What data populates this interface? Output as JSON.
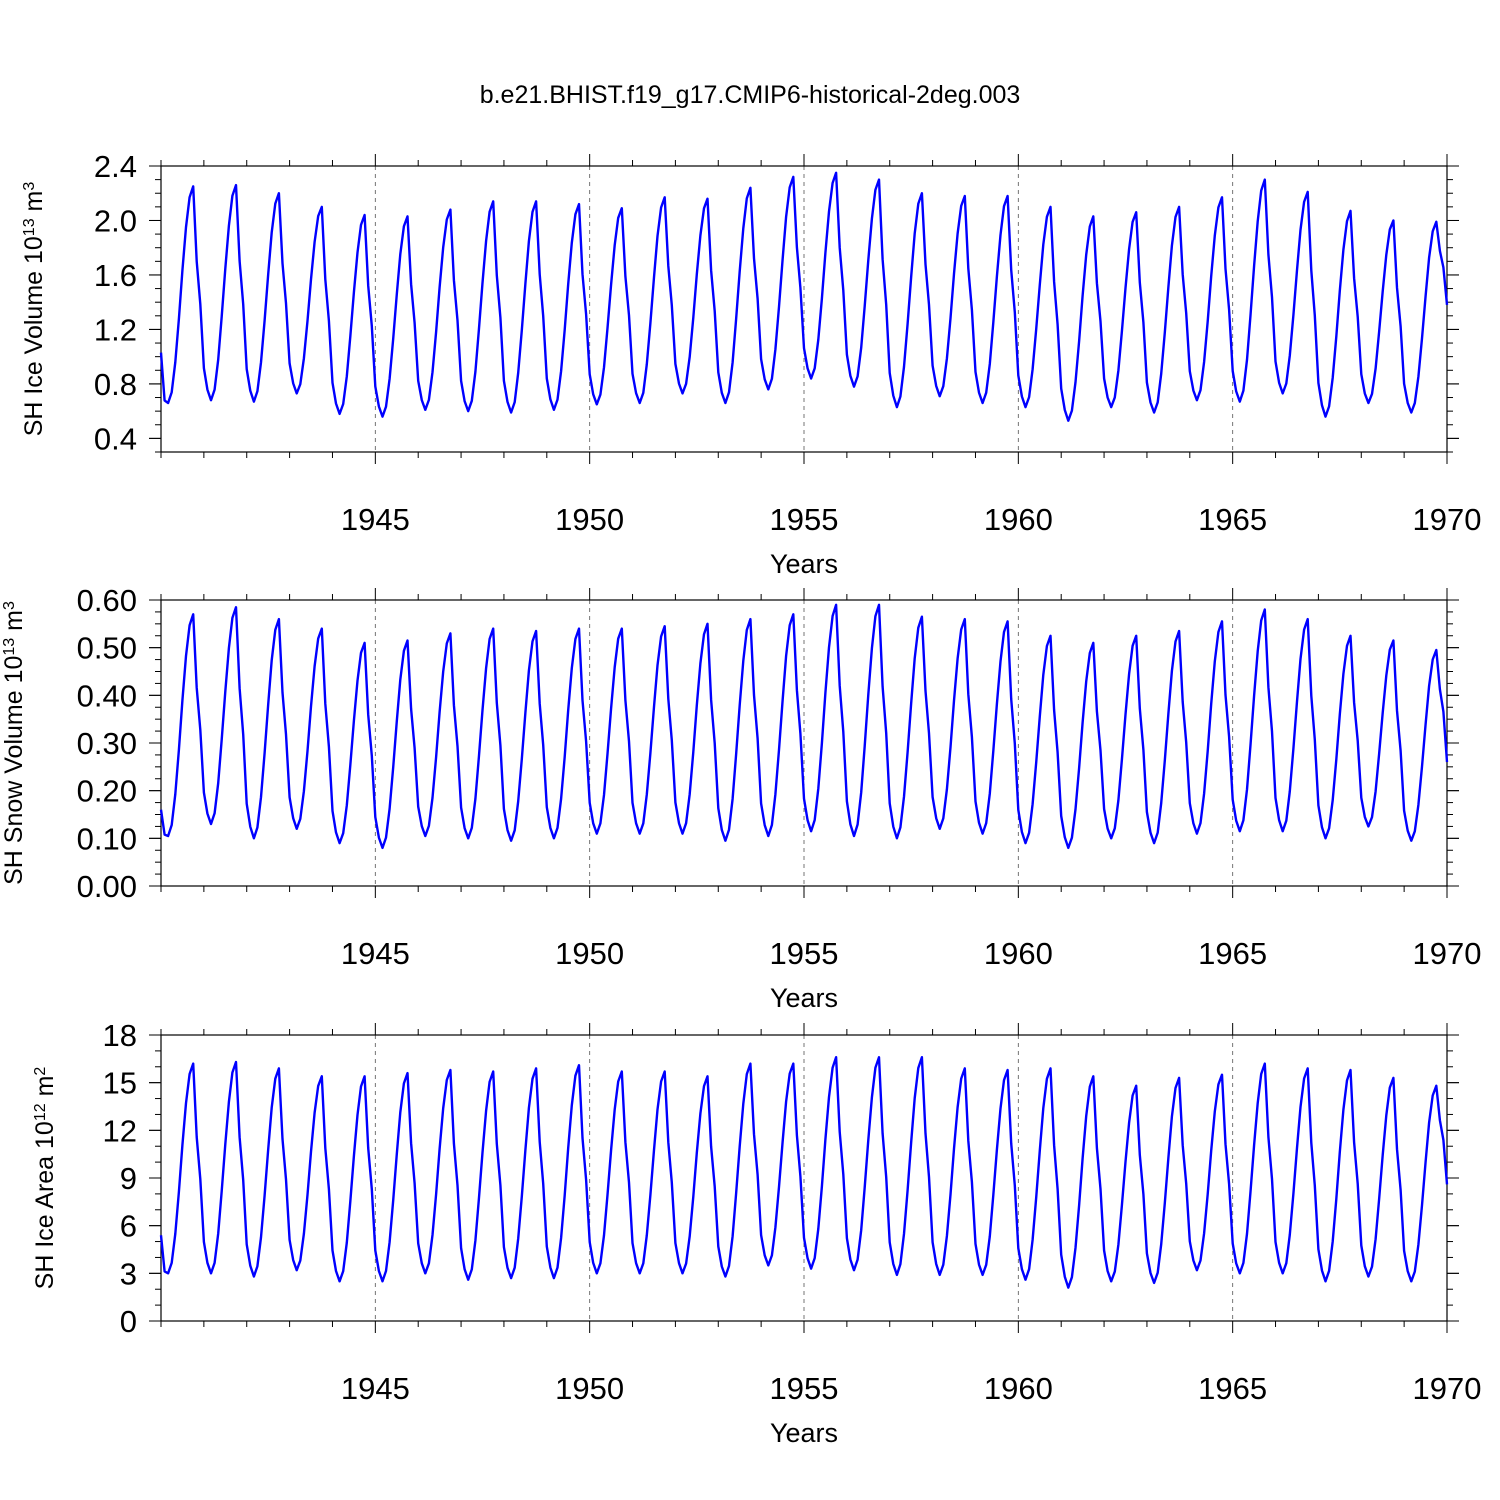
{
  "title": "b.e21.BHIST.f19_g17.CMIP6-historical-2deg.003",
  "colors": {
    "series": "#0000ff",
    "axis": "#000000"
  },
  "chart_data": [
    {
      "type": "line",
      "id": "ice-volume",
      "ylabel": {
        "prefix": "SH Ice Volume 10",
        "exp": "13",
        "mid": " m",
        "unit_exp": "3"
      },
      "xlabel": "Years",
      "xlim": [
        1940.0,
        1970.0
      ],
      "ylim": [
        0.3,
        2.4
      ],
      "yticks": [
        "0.4",
        "0.8",
        "1.2",
        "1.6",
        "2.0",
        "2.4"
      ],
      "ytick_values": [
        0.4,
        0.8,
        1.2,
        1.6,
        2.0,
        2.4
      ],
      "ytick_minor_step": 0.1,
      "xticks": [
        "1945",
        "1950",
        "1955",
        "1960",
        "1965",
        "1970"
      ],
      "xtick_values": [
        1945,
        1950,
        1955,
        1960,
        1965,
        1970
      ],
      "year_start": 1940,
      "series": [
        {
          "name": "SH Ice Volume",
          "annual_min": [
            0.66,
            0.68,
            0.67,
            0.73,
            0.58,
            0.56,
            0.61,
            0.6,
            0.59,
            0.61,
            0.65,
            0.66,
            0.73,
            0.66,
            0.76,
            0.84,
            0.78,
            0.63,
            0.71,
            0.66,
            0.63,
            0.53,
            0.63,
            0.59,
            0.68,
            0.67,
            0.73,
            0.56,
            0.66,
            0.59
          ],
          "annual_max": [
            2.25,
            2.26,
            2.2,
            2.1,
            2.04,
            2.03,
            2.08,
            2.14,
            2.14,
            2.12,
            2.09,
            2.17,
            2.16,
            2.24,
            2.32,
            2.35,
            2.3,
            2.2,
            2.18,
            2.18,
            2.1,
            2.03,
            2.06,
            2.1,
            2.17,
            2.3,
            2.21,
            2.07,
            2.0,
            1.99
          ],
          "start_value": 1.03,
          "end_value": 1.38
        }
      ]
    },
    {
      "type": "line",
      "id": "snow-volume",
      "ylabel": {
        "prefix": "SH Snow Volume 10",
        "exp": "13",
        "mid": " m",
        "unit_exp": "3"
      },
      "xlabel": "Years",
      "xlim": [
        1940.0,
        1970.0
      ],
      "ylim": [
        0.0,
        0.6
      ],
      "yticks": [
        "0.00",
        "0.10",
        "0.20",
        "0.30",
        "0.40",
        "0.50",
        "0.60"
      ],
      "ytick_values": [
        0.0,
        0.1,
        0.2,
        0.3,
        0.4,
        0.5,
        0.6
      ],
      "ytick_minor_step": 0.025,
      "xticks": [
        "1945",
        "1950",
        "1955",
        "1960",
        "1965",
        "1970"
      ],
      "xtick_values": [
        1945,
        1950,
        1955,
        1960,
        1965,
        1970
      ],
      "year_start": 1940,
      "series": [
        {
          "name": "SH Snow Volume",
          "annual_min": [
            0.105,
            0.13,
            0.1,
            0.12,
            0.09,
            0.08,
            0.105,
            0.1,
            0.095,
            0.1,
            0.11,
            0.11,
            0.11,
            0.095,
            0.105,
            0.115,
            0.105,
            0.1,
            0.12,
            0.11,
            0.09,
            0.08,
            0.1,
            0.09,
            0.11,
            0.115,
            0.115,
            0.1,
            0.125,
            0.095
          ],
          "annual_max": [
            0.57,
            0.585,
            0.56,
            0.54,
            0.51,
            0.515,
            0.53,
            0.54,
            0.535,
            0.54,
            0.54,
            0.545,
            0.55,
            0.56,
            0.57,
            0.59,
            0.59,
            0.565,
            0.56,
            0.555,
            0.525,
            0.51,
            0.525,
            0.535,
            0.555,
            0.58,
            0.56,
            0.525,
            0.515,
            0.495
          ],
          "start_value": 0.16,
          "end_value": 0.26
        }
      ]
    },
    {
      "type": "line",
      "id": "ice-area",
      "ylabel": {
        "prefix": "SH Ice Area 10",
        "exp": "12",
        "mid": " m",
        "unit_exp": "2"
      },
      "xlabel": "Years",
      "xlim": [
        1940.0,
        1970.0
      ],
      "ylim": [
        0,
        18
      ],
      "yticks": [
        "0",
        "3",
        "6",
        "9",
        "12",
        "15",
        "18"
      ],
      "ytick_values": [
        0,
        3,
        6,
        9,
        12,
        15,
        18
      ],
      "ytick_minor_step": 1,
      "xticks": [
        "1945",
        "1950",
        "1955",
        "1960",
        "1965",
        "1970"
      ],
      "xtick_values": [
        1945,
        1950,
        1955,
        1960,
        1965,
        1970
      ],
      "year_start": 1940,
      "series": [
        {
          "name": "SH Ice Area",
          "annual_min": [
            3.0,
            3.0,
            2.8,
            3.2,
            2.5,
            2.5,
            3.0,
            2.6,
            2.7,
            2.7,
            3.0,
            3.0,
            3.0,
            2.8,
            3.5,
            3.3,
            3.2,
            2.9,
            2.9,
            2.9,
            2.6,
            2.1,
            2.5,
            2.4,
            3.2,
            3.0,
            3.0,
            2.5,
            2.8,
            2.5
          ],
          "annual_max": [
            16.2,
            16.3,
            15.9,
            15.4,
            15.4,
            15.6,
            15.8,
            15.7,
            15.9,
            16.1,
            15.7,
            15.7,
            15.4,
            16.2,
            16.2,
            16.6,
            16.6,
            16.6,
            15.9,
            15.8,
            15.9,
            15.4,
            14.8,
            15.3,
            15.5,
            16.2,
            15.9,
            15.8,
            15.3,
            14.8
          ],
          "start_value": 5.4,
          "end_value": 8.6
        }
      ]
    }
  ]
}
